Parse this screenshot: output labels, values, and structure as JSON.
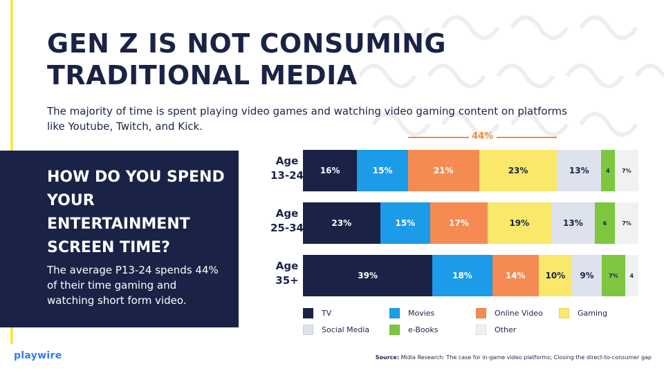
{
  "title": {
    "line1": "GEN Z IS NOT CONSUMING",
    "line2": "TRADITIONAL MEDIA"
  },
  "subtitle": "The majority of time is spent playing video games and watching video gaming content on platforms like Youtube, Twitch, and Kick.",
  "panel": {
    "question": "HOW DO YOU SPEND YOUR ENTERTAINMENT SCREEN TIME?",
    "body": "The average P13-24 spends 44% of their time gaming and watching short form video."
  },
  "logo": "playwire",
  "source": {
    "label": "Source:",
    "text": "Midia Research: The case for in-game video platforms; Closing the direct-to-consumer gap"
  },
  "colors": {
    "navy": "#1a2346",
    "yellow_accent": "#f6e25a",
    "highlight": "#f58b3c",
    "TV": "#1a2346",
    "Movies": "#1c9be8",
    "Online Video": "#f58b52",
    "Gaming": "#f9e86a",
    "Social Media": "#dde2ec",
    "e-Books": "#7dc63e",
    "Other": "#f1f1f1"
  },
  "chart_data": {
    "type": "bar",
    "orientation": "horizontal",
    "stacked": true,
    "categories": [
      "Age 13-24",
      "Age 25-34",
      "Age 35+"
    ],
    "category_lines": [
      [
        "Age",
        "13-24"
      ],
      [
        "Age",
        "25-34"
      ],
      [
        "Age",
        "35+"
      ]
    ],
    "series": [
      {
        "name": "TV",
        "values": [
          16,
          23,
          39
        ],
        "labels": [
          "16%",
          "23%",
          "39%"
        ]
      },
      {
        "name": "Movies",
        "values": [
          15,
          15,
          18
        ],
        "labels": [
          "15%",
          "15%",
          "18%"
        ]
      },
      {
        "name": "Online Video",
        "values": [
          21,
          17,
          14
        ],
        "labels": [
          "21%",
          "17%",
          "14%"
        ]
      },
      {
        "name": "Gaming",
        "values": [
          23,
          19,
          10
        ],
        "labels": [
          "23%",
          "19%",
          "10%"
        ]
      },
      {
        "name": "Social Media",
        "values": [
          13,
          13,
          9
        ],
        "labels": [
          "13%",
          "13%",
          "9%"
        ]
      },
      {
        "name": "e-Books",
        "values": [
          4,
          6,
          7
        ],
        "labels": [
          "4",
          "6",
          "7%"
        ]
      },
      {
        "name": "Other",
        "values": [
          7,
          7,
          4
        ],
        "labels": [
          "7%",
          "7%",
          "4"
        ]
      }
    ],
    "legend": [
      "TV",
      "Movies",
      "Online Video",
      "Gaming",
      "Social Media",
      "e-Books",
      "Other"
    ],
    "legend_position": "bottom",
    "annotation": {
      "text": "44%",
      "row": "Age 13-24",
      "spans": [
        "Online Video",
        "Gaming"
      ]
    },
    "xlim": [
      0,
      100
    ]
  }
}
